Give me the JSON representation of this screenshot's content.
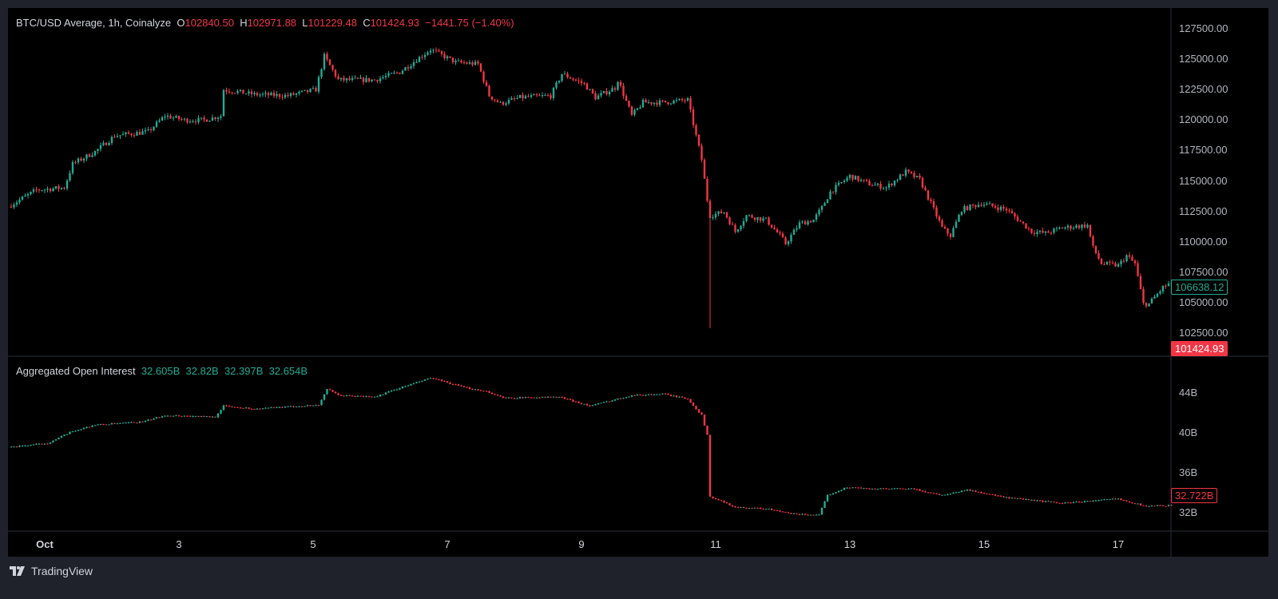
{
  "price_legend": {
    "symbol": "BTC/USD Average, 1h, Coinalyze",
    "o_label": "O",
    "o": "102840.50",
    "h_label": "H",
    "h": "102971.88",
    "l_label": "L",
    "l": "101229.48",
    "c_label": "C",
    "c": "101424.93",
    "change": "−1441.75 (−1.40%)"
  },
  "oi_legend": {
    "title": "Aggregated Open Interest",
    "values": [
      "32.605B",
      "32.82B",
      "32.397B",
      "32.654B"
    ]
  },
  "price_axis": [
    "127500.00",
    "125000.00",
    "122500.00",
    "120000.00",
    "117500.00",
    "115000.00",
    "112500.00",
    "110000.00",
    "107500.00",
    "105000.00",
    "102500.00"
  ],
  "price_tags": {
    "last": "106638.12",
    "cursor": "101424.93"
  },
  "oi_axis": [
    "44B",
    "40B",
    "36B",
    "32B"
  ],
  "oi_tag": "32.722B",
  "time_axis": [
    "Oct",
    "3",
    "5",
    "7",
    "9",
    "11",
    "13",
    "15",
    "17"
  ],
  "branding": "TradingView",
  "colors": {
    "up": "#22ab94",
    "down": "#f23645",
    "background": "#000000",
    "frame": "#1f222b"
  },
  "chart_data": [
    {
      "type": "candlestick",
      "title": "BTC/USD Average, 1h, Coinalyze",
      "interval": "1h",
      "ylim": [
        101000,
        128500
      ],
      "close_path": [
        [
          "09-30 11:00",
          112900
        ],
        [
          "09-30 21:00",
          114250
        ],
        [
          "10-01 07:00",
          114450
        ],
        [
          "10-01 10:00",
          116400
        ],
        [
          "10-01 18:00",
          117400
        ],
        [
          "10-02 01:00",
          118700
        ],
        [
          "10-02 13:00",
          119050
        ],
        [
          "10-02 19:00",
          120350
        ],
        [
          "10-03 02:00",
          120000
        ],
        [
          "10-03 09:00",
          120000
        ],
        [
          "10-03 15:00",
          120350
        ],
        [
          "10-03 16:00",
          122500
        ],
        [
          "10-04 03:00",
          122100
        ],
        [
          "10-04 15:00",
          122000
        ],
        [
          "10-05 01:00",
          122500
        ],
        [
          "10-05 04:00",
          125250
        ],
        [
          "10-05 09:00",
          123300
        ],
        [
          "10-05 22:00",
          123300
        ],
        [
          "10-06 07:00",
          123950
        ],
        [
          "10-06 18:00",
          125800
        ],
        [
          "10-07 03:00",
          124750
        ],
        [
          "10-07 11:00",
          124600
        ],
        [
          "10-07 15:00",
          122000
        ],
        [
          "10-07 19:00",
          121350
        ],
        [
          "10-08 02:00",
          121850
        ],
        [
          "10-08 13:00",
          122000
        ],
        [
          "10-08 17:00",
          123800
        ],
        [
          "10-09 01:00",
          122950
        ],
        [
          "10-09 05:00",
          121850
        ],
        [
          "10-09 12:00",
          122650
        ],
        [
          "10-09 13:00",
          123300
        ],
        [
          "10-09 18:00",
          120350
        ],
        [
          "10-09 22:00",
          121450
        ],
        [
          "10-10 05:00",
          121450
        ],
        [
          "10-10 14:00",
          121650
        ],
        [
          "10-10 17:00",
          118700
        ],
        [
          "10-10 19:00",
          116750
        ],
        [
          "10-10 21:00",
          113450
        ],
        [
          "10-10 22:00",
          112150
        ],
        [
          "10-11 03:00",
          112450
        ],
        [
          "10-11 07:00",
          110850
        ],
        [
          "10-11 11:00",
          112150
        ],
        [
          "10-11 18:00",
          111800
        ],
        [
          "10-11 23:00",
          110500
        ],
        [
          "10-12 01:00",
          109850
        ],
        [
          "10-12 06:00",
          111500
        ],
        [
          "10-12 11:00",
          111800
        ],
        [
          "10-12 14:00",
          112800
        ],
        [
          "10-12 17:00",
          114100
        ],
        [
          "10-13 00:00",
          115400
        ],
        [
          "10-13 07:00",
          114750
        ],
        [
          "10-13 13:00",
          114450
        ],
        [
          "10-13 20:00",
          115750
        ],
        [
          "10-14 01:00",
          115100
        ],
        [
          "10-14 05:00",
          113150
        ],
        [
          "10-14 09:00",
          111150
        ],
        [
          "10-14 12:00",
          110500
        ],
        [
          "10-14 16:00",
          112650
        ],
        [
          "10-14 23:00",
          113150
        ],
        [
          "10-15 08:00",
          112650
        ],
        [
          "10-15 17:00",
          110850
        ],
        [
          "10-15 22:00",
          110700
        ],
        [
          "10-16 04:00",
          111150
        ],
        [
          "10-16 13:00",
          111350
        ],
        [
          "10-16 15:00",
          109500
        ],
        [
          "10-16 18:00",
          108200
        ],
        [
          "10-17 00:00",
          108050
        ],
        [
          "10-17 03:00",
          108850
        ],
        [
          "10-17 06:00",
          108200
        ],
        [
          "10-17 09:00",
          104900
        ],
        [
          "10-17 11:00",
          104900
        ],
        [
          "10-17 16:00",
          106250
        ],
        [
          "10-17 19:00",
          106638
        ]
      ],
      "wick_low": [
        "10-10 22:00",
        102900
      ]
    },
    {
      "type": "candlestick",
      "title": "Aggregated Open Interest",
      "unit": "B",
      "ylim": [
        31.2,
        46.5
      ],
      "close_path": [
        [
          "09-30 11:00",
          38.56
        ],
        [
          "10-01 01:00",
          38.96
        ],
        [
          "10-01 10:00",
          40.16
        ],
        [
          "10-01 18:00",
          40.8
        ],
        [
          "10-02 11:00",
          41.1
        ],
        [
          "10-02 19:00",
          41.76
        ],
        [
          "10-03 13:00",
          41.6
        ],
        [
          "10-03 16:00",
          42.7
        ],
        [
          "10-04 03:00",
          42.4
        ],
        [
          "10-05 02:00",
          42.8
        ],
        [
          "10-05 05:00",
          44.4
        ],
        [
          "10-05 09:00",
          43.76
        ],
        [
          "10-05 22:00",
          43.6
        ],
        [
          "10-06 06:00",
          44.4
        ],
        [
          "10-06 18:00",
          45.5
        ],
        [
          "10-07 06:00",
          44.56
        ],
        [
          "10-07 14:00",
          44.16
        ],
        [
          "10-07 20:00",
          43.5
        ],
        [
          "10-08 16:00",
          43.6
        ],
        [
          "10-09 03:00",
          42.7
        ],
        [
          "10-09 18:00",
          43.76
        ],
        [
          "10-10 05:00",
          43.9
        ],
        [
          "10-10 14:00",
          43.4
        ],
        [
          "10-10 19:00",
          41.76
        ],
        [
          "10-10 21:00",
          39.8
        ],
        [
          "10-10 22:00",
          33.6
        ],
        [
          "10-11 07:00",
          32.56
        ],
        [
          "10-11 18:00",
          32.4
        ],
        [
          "10-12 03:00",
          31.9
        ],
        [
          "10-12 13:00",
          31.76
        ],
        [
          "10-12 16:00",
          33.76
        ],
        [
          "10-12 23:00",
          34.56
        ],
        [
          "10-13 07:00",
          34.4
        ],
        [
          "10-13 22:00",
          34.4
        ],
        [
          "10-14 09:00",
          33.76
        ],
        [
          "10-14 18:00",
          34.3
        ],
        [
          "10-15 08:00",
          33.5
        ],
        [
          "10-16 04:00",
          32.96
        ],
        [
          "10-17 00:00",
          33.4
        ],
        [
          "10-17 09:00",
          32.7
        ],
        [
          "10-17 19:00",
          32.722
        ]
      ]
    }
  ]
}
